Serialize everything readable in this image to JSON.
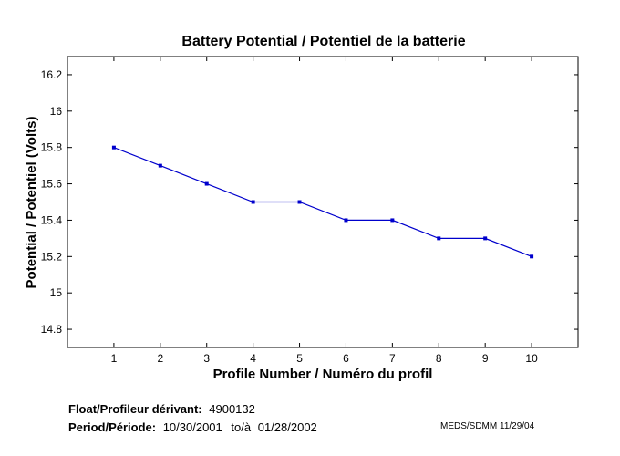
{
  "chart_data": {
    "type": "line",
    "title": "Battery Potential / Potentiel de la batterie",
    "xlabel": "Profile Number / Numéro du profil",
    "ylabel": "Potential / Potentiel (Volts)",
    "x": [
      1,
      2,
      3,
      4,
      5,
      6,
      7,
      8,
      9,
      10
    ],
    "y": [
      15.8,
      15.7,
      15.6,
      15.5,
      15.5,
      15.4,
      15.4,
      15.3,
      15.3,
      15.2
    ],
    "xlim": [
      0,
      11
    ],
    "ylim": [
      14.7,
      16.3
    ],
    "xticks": [
      1,
      2,
      3,
      4,
      5,
      6,
      7,
      8,
      9,
      10
    ],
    "yticks": [
      14.8,
      15,
      15.2,
      15.4,
      15.6,
      15.8,
      16,
      16.2
    ],
    "xtick_labels": [
      "1",
      "2",
      "3",
      "4",
      "5",
      "6",
      "7",
      "8",
      "9",
      "10"
    ],
    "ytick_labels": [
      "14.8",
      "15",
      "15.2",
      "15.4",
      "15.6",
      "15.8",
      "16",
      "16.2"
    ],
    "grid": false,
    "line_color": "#0000cc",
    "marker_color": "#0000cc"
  },
  "footer": {
    "float_label": "Float/Profileur dérivant:",
    "float_value": "4900132",
    "period_label": "Period/Période:",
    "period_start": "10/30/2001",
    "period_sep": "to/à",
    "period_end": "01/28/2002",
    "credit": "MEDS/SDMM  11/29/04"
  }
}
